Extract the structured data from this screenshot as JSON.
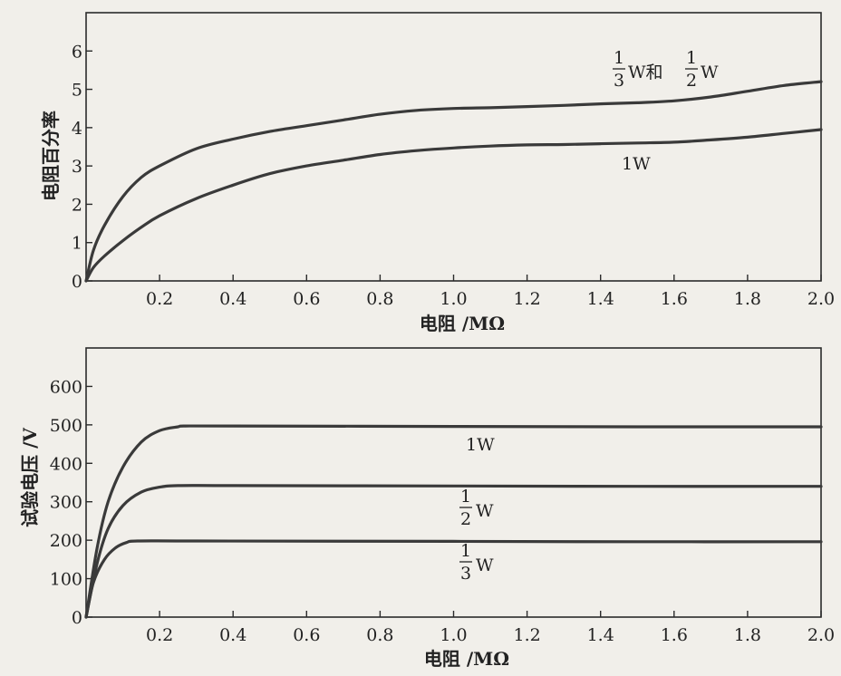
{
  "chart_data": [
    {
      "type": "line",
      "xlabel": "电阻 /MΩ",
      "ylabel": "电阻百分率",
      "xlim": [
        0,
        2.0
      ],
      "ylim": [
        0,
        7
      ],
      "xticks": [
        "0.2",
        "0.4",
        "0.6",
        "0.8",
        "1.0",
        "1.2",
        "1.4",
        "1.6",
        "1.8",
        "2.0"
      ],
      "yticks": [
        "0",
        "1",
        "2",
        "3",
        "4",
        "5",
        "6"
      ],
      "grid": false,
      "series": [
        {
          "name": "1/3W和1/2W",
          "label_parts": {
            "n1": "1",
            "d1": "3",
            "unit1": "W和",
            "n2": "1",
            "d2": "2",
            "unit2": "W"
          },
          "points": [
            [
              0,
              0
            ],
            [
              0.02,
              0.8
            ],
            [
              0.05,
              1.45
            ],
            [
              0.1,
              2.2
            ],
            [
              0.15,
              2.7
            ],
            [
              0.2,
              3.0
            ],
            [
              0.3,
              3.45
            ],
            [
              0.4,
              3.7
            ],
            [
              0.5,
              3.9
            ],
            [
              0.6,
              4.05
            ],
            [
              0.7,
              4.2
            ],
            [
              0.8,
              4.35
            ],
            [
              0.9,
              4.45
            ],
            [
              1.0,
              4.5
            ],
            [
              1.1,
              4.52
            ],
            [
              1.2,
              4.55
            ],
            [
              1.3,
              4.58
            ],
            [
              1.4,
              4.62
            ],
            [
              1.5,
              4.65
            ],
            [
              1.6,
              4.7
            ],
            [
              1.7,
              4.8
            ],
            [
              1.8,
              4.95
            ],
            [
              1.9,
              5.1
            ],
            [
              2.0,
              5.2
            ]
          ]
        },
        {
          "name": "1W",
          "label_parts": {
            "text": "1W"
          },
          "points": [
            [
              0,
              0
            ],
            [
              0.02,
              0.35
            ],
            [
              0.05,
              0.65
            ],
            [
              0.1,
              1.05
            ],
            [
              0.15,
              1.4
            ],
            [
              0.2,
              1.7
            ],
            [
              0.3,
              2.15
            ],
            [
              0.4,
              2.5
            ],
            [
              0.5,
              2.8
            ],
            [
              0.6,
              3.0
            ],
            [
              0.7,
              3.15
            ],
            [
              0.8,
              3.3
            ],
            [
              0.9,
              3.4
            ],
            [
              1.0,
              3.47
            ],
            [
              1.1,
              3.52
            ],
            [
              1.2,
              3.55
            ],
            [
              1.3,
              3.56
            ],
            [
              1.4,
              3.58
            ],
            [
              1.5,
              3.6
            ],
            [
              1.6,
              3.62
            ],
            [
              1.7,
              3.68
            ],
            [
              1.8,
              3.75
            ],
            [
              1.9,
              3.85
            ],
            [
              2.0,
              3.95
            ]
          ]
        }
      ]
    },
    {
      "type": "line",
      "xlabel": "电阻 /MΩ",
      "ylabel": "试验电压 /V",
      "xlim": [
        0,
        2.0
      ],
      "ylim": [
        0,
        700
      ],
      "xticks": [
        "0.2",
        "0.4",
        "0.6",
        "0.8",
        "1.0",
        "1.2",
        "1.4",
        "1.6",
        "1.8",
        "2.0"
      ],
      "yticks": [
        "0",
        "100",
        "200",
        "300",
        "400",
        "500",
        "600"
      ],
      "grid": false,
      "series": [
        {
          "name": "1W",
          "label_parts": {
            "text": "1W"
          },
          "points": [
            [
              0,
              0
            ],
            [
              0.03,
              180
            ],
            [
              0.06,
              300
            ],
            [
              0.1,
              390
            ],
            [
              0.15,
              455
            ],
            [
              0.2,
              485
            ],
            [
              0.25,
              495
            ],
            [
              0.27,
              497
            ],
            [
              0.4,
              497
            ],
            [
              1.0,
              496
            ],
            [
              1.5,
              495
            ],
            [
              2.0,
              495
            ]
          ]
        },
        {
          "name": "1/2W",
          "label_parts": {
            "n": "1",
            "d": "2",
            "unit": "W"
          },
          "points": [
            [
              0,
              0
            ],
            [
              0.03,
              140
            ],
            [
              0.06,
              230
            ],
            [
              0.1,
              290
            ],
            [
              0.15,
              325
            ],
            [
              0.2,
              338
            ],
            [
              0.25,
              342
            ],
            [
              0.4,
              342
            ],
            [
              1.0,
              341
            ],
            [
              1.5,
              340
            ],
            [
              2.0,
              340
            ]
          ]
        },
        {
          "name": "1/3W",
          "label_parts": {
            "n": "1",
            "d": "3",
            "unit": "W"
          },
          "points": [
            [
              0,
              0
            ],
            [
              0.02,
              90
            ],
            [
              0.05,
              150
            ],
            [
              0.08,
              180
            ],
            [
              0.11,
              194
            ],
            [
              0.14,
              198
            ],
            [
              0.3,
              198
            ],
            [
              1.0,
              197
            ],
            [
              1.5,
              196
            ],
            [
              2.0,
              196
            ]
          ]
        }
      ]
    }
  ]
}
